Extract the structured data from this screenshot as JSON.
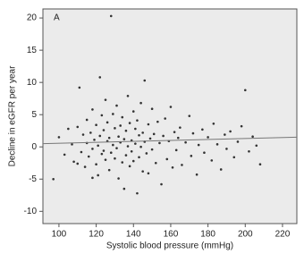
{
  "chart_data": {
    "type": "scatter",
    "panel_label": "A",
    "xlabel": "Systolic blood pressure (mmHg)",
    "ylabel": "Decline in eGFR per year",
    "xlim": [
      91.4,
      227.7
    ],
    "ylim": [
      -11.9,
      21.4
    ],
    "xticks": [
      100,
      120,
      140,
      160,
      180,
      200,
      220
    ],
    "yticks": [
      -10,
      -5,
      0,
      5,
      10,
      15,
      20
    ],
    "grid": false,
    "color": "#333333",
    "fit_color": "#777777",
    "fit_line": {
      "x": [
        91.4,
        227.7
      ],
      "y": [
        0.5,
        1.5
      ]
    },
    "series": [
      {
        "x": [
          97,
          100,
          103,
          105,
          107,
          108,
          110,
          111,
          112,
          113,
          114,
          115,
          115,
          116,
          117,
          118,
          118,
          119,
          120,
          120,
          121,
          121,
          122,
          122,
          123,
          123,
          124,
          124,
          125,
          125,
          126,
          126,
          127,
          127,
          128,
          128,
          129,
          129,
          130,
          130,
          131,
          131,
          132,
          132,
          133,
          133,
          134,
          134,
          135,
          135,
          136,
          136,
          137,
          137,
          138,
          138,
          139,
          139,
          140,
          140,
          141,
          141,
          142,
          142,
          143,
          143,
          144,
          144,
          145,
          145,
          146,
          146,
          147,
          148,
          148,
          149,
          150,
          150,
          151,
          152,
          153,
          154,
          155,
          156,
          157,
          158,
          159,
          160,
          161,
          162,
          163,
          164,
          165,
          166,
          168,
          170,
          171,
          172,
          174,
          175,
          177,
          178,
          180,
          182,
          183,
          185,
          187,
          189,
          190,
          192,
          194,
          196,
          198,
          200,
          202,
          204,
          206,
          208,
          110,
          118
        ],
        "y": [
          -5.0,
          1.5,
          -1.2,
          2.8,
          0.4,
          -2.3,
          3.1,
          9.2,
          -0.8,
          1.9,
          -3.1,
          0.6,
          4.2,
          -1.5,
          2.2,
          -0.3,
          5.8,
          1.1,
          -2.7,
          3.4,
          0.2,
          -4.4,
          10.8,
          1.7,
          -1.1,
          4.9,
          2.6,
          -0.6,
          7.3,
          -2.0,
          0.9,
          3.8,
          -3.6,
          1.4,
          20.3,
          -0.9,
          5.1,
          0.3,
          -1.8,
          2.9,
          6.4,
          -0.2,
          1.6,
          -4.9,
          3.3,
          0.7,
          -2.4,
          4.6,
          -6.5,
          1.2,
          2.5,
          -1.3,
          7.9,
          0.1,
          -3.0,
          3.7,
          1.0,
          -0.7,
          5.5,
          -2.2,
          0.5,
          2.8,
          -7.2,
          4.1,
          1.8,
          -1.6,
          6.8,
          0.0,
          -3.8,
          2.2,
          10.3,
          0.8,
          -1.0,
          3.5,
          -4.1,
          1.3,
          5.9,
          -0.4,
          2.0,
          -2.5,
          3.9,
          0.6,
          -5.8,
          1.7,
          4.4,
          -1.9,
          0.9,
          6.2,
          -3.2,
          2.3,
          -0.5,
          1.4,
          3.0,
          -2.8,
          0.7,
          4.8,
          -1.4,
          2.1,
          -4.3,
          0.3,
          2.7,
          -0.9,
          1.5,
          -2.1,
          3.6,
          0.4,
          -3.5,
          1.9,
          -0.3,
          2.4,
          -1.6,
          0.8,
          3.2,
          8.8,
          -0.7,
          1.6,
          0.2,
          -2.7,
          -2.6,
          -4.8
        ]
      }
    ]
  }
}
